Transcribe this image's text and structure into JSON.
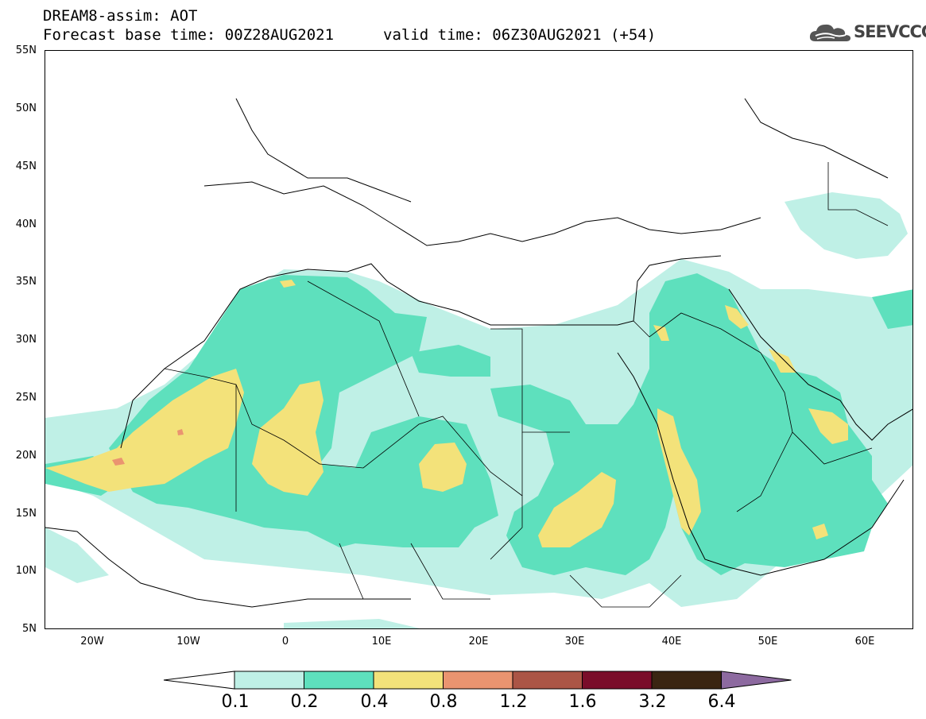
{
  "header": {
    "title": "DREAM8-assim: AOT",
    "base_time": "Forecast base time: 00Z28AUG2021",
    "valid_time": "valid time: 06Z30AUG2021 (+54)"
  },
  "logo": {
    "text": "SEEVCCC",
    "icon": "cloud-icon"
  },
  "map": {
    "region": "North Africa, Europe, Middle East",
    "lat_labels": [
      "55N",
      "50N",
      "45N",
      "40N",
      "35N",
      "30N",
      "25N",
      "20N",
      "15N",
      "10N",
      "5N"
    ],
    "lon_labels": [
      "20W",
      "10W",
      "0",
      "10E",
      "20E",
      "30E",
      "40E",
      "50E",
      "60E"
    ]
  },
  "colorbar": {
    "labels": [
      "0.1",
      "0.2",
      "0.4",
      "0.8",
      "1.2",
      "1.6",
      "3.2",
      "6.4"
    ],
    "colors": [
      "#ffffff",
      "#bff0e6",
      "#5ee0bd",
      "#f3e27a",
      "#ea9470",
      "#ab5546",
      "#7a0d2a",
      "#3a2512",
      "#8d6aa0"
    ]
  }
}
